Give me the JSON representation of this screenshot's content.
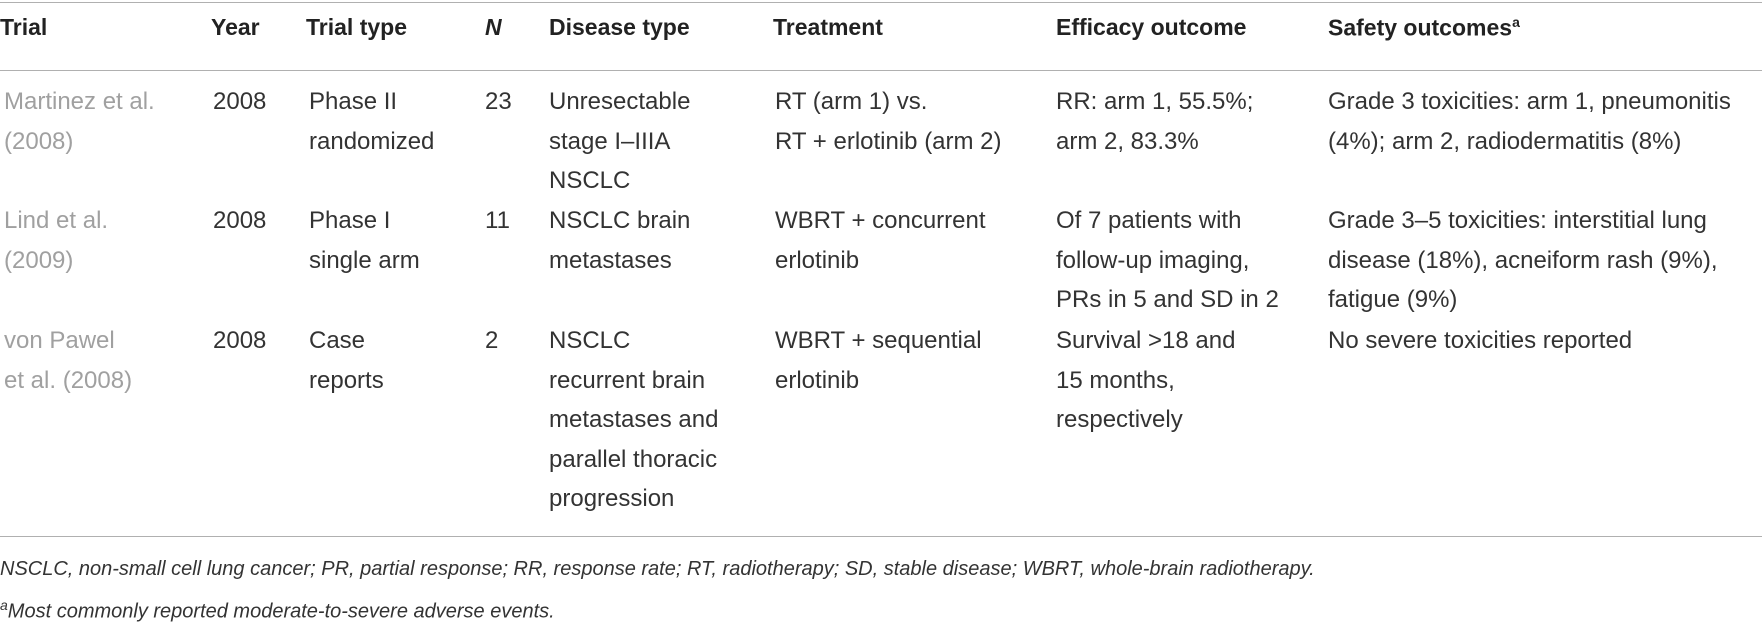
{
  "table": {
    "header": [
      "Trial",
      "Year",
      "Trial type",
      "N",
      "Disease type",
      "Treatment",
      "Efficacy outcome",
      "Safety outcomes"
    ],
    "header_note": "a",
    "rows": [
      [
        [
          "Martinez et al.",
          "(2008)"
        ],
        [
          "2008"
        ],
        [
          "Phase II",
          "randomized"
        ],
        [
          "23"
        ],
        [
          "Unresectable",
          "stage I–IIIA",
          "NSCLC"
        ],
        [
          "RT (arm 1) vs.",
          "RT + erlotinib (arm 2)"
        ],
        [
          "RR: arm 1, 55.5%;",
          "arm 2, 83.3%"
        ],
        [
          "Grade 3 toxicities: arm 1, pneumonitis",
          "(4%); arm 2, radiodermatitis (8%)"
        ]
      ],
      [
        [
          "Lind et al.",
          "(2009)"
        ],
        [
          "2008"
        ],
        [
          "Phase I",
          "single arm"
        ],
        [
          "11"
        ],
        [
          "NSCLC brain",
          "metastases"
        ],
        [
          "WBRT + concurrent",
          "erlotinib"
        ],
        [
          "Of 7 patients with",
          "follow-up imaging,",
          "PRs in 5 and SD in 2"
        ],
        [
          "Grade 3–5 toxicities: interstitial lung",
          "disease (18%), acneiform rash (9%),",
          "fatigue (9%)"
        ]
      ],
      [
        [
          "von Pawel",
          "et al. (2008)"
        ],
        [
          "2008"
        ],
        [
          "Case",
          "reports"
        ],
        [
          "2"
        ],
        [
          "NSCLC",
          "recurrent brain",
          "metastases and",
          "parallel thoracic",
          "progression"
        ],
        [
          "WBRT + sequential",
          "erlotinib"
        ],
        [
          "Survival >18 and",
          "15 months,",
          "respectively"
        ],
        [
          "No severe toxicities reported"
        ]
      ]
    ]
  },
  "footnotes": {
    "abbreviations": "NSCLC, non-small cell lung cancer; PR, partial response; RR, response rate; RT, radiotherapy; SD, stable disease; WBRT, whole-brain radiotherapy.",
    "note_mark": "a",
    "note": "Most commonly reported moderate-to-severe adverse events."
  }
}
